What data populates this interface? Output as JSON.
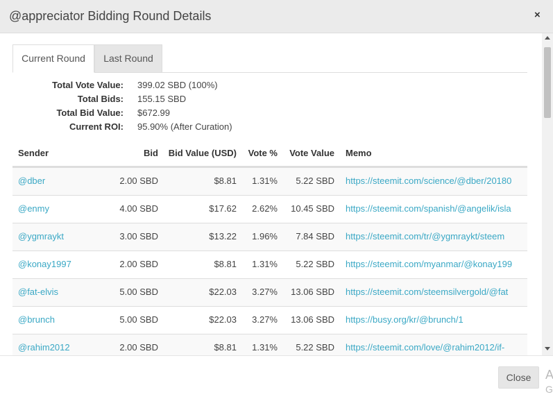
{
  "header": {
    "title": "@appreciator Bidding Round Details",
    "close_glyph": "×"
  },
  "tabs": [
    {
      "label": "Current Round",
      "active": true
    },
    {
      "label": "Last Round",
      "active": false
    }
  ],
  "summary": [
    {
      "label": "Total Vote Value:",
      "value": "399.02 SBD (100%)"
    },
    {
      "label": "Total Bids:",
      "value": "155.15 SBD"
    },
    {
      "label": "Total Bid Value:",
      "value": "$672.99"
    },
    {
      "label": "Current ROI:",
      "value": "95.90% (After Curation)"
    }
  ],
  "table": {
    "columns": [
      "Sender",
      "Bid",
      "Bid Value (USD)",
      "Vote %",
      "Vote Value",
      "Memo"
    ],
    "rows": [
      {
        "sender": "@dber",
        "bid": "2.00 SBD",
        "bid_value": "$8.81",
        "vote_pct": "1.31%",
        "vote_value": "5.22 SBD",
        "memo": "https://steemit.com/science/@dber/20180"
      },
      {
        "sender": "@enmy",
        "bid": "4.00 SBD",
        "bid_value": "$17.62",
        "vote_pct": "2.62%",
        "vote_value": "10.45 SBD",
        "memo": "https://steemit.com/spanish/@angelik/isla"
      },
      {
        "sender": "@ygmraykt",
        "bid": "3.00 SBD",
        "bid_value": "$13.22",
        "vote_pct": "1.96%",
        "vote_value": "7.84 SBD",
        "memo": "https://steemit.com/tr/@ygmraykt/steem"
      },
      {
        "sender": "@konay1997",
        "bid": "2.00 SBD",
        "bid_value": "$8.81",
        "vote_pct": "1.31%",
        "vote_value": "5.22 SBD",
        "memo": "https://steemit.com/myanmar/@konay199"
      },
      {
        "sender": "@fat-elvis",
        "bid": "5.00 SBD",
        "bid_value": "$22.03",
        "vote_pct": "3.27%",
        "vote_value": "13.06 SBD",
        "memo": "https://steemit.com/steemsilvergold/@fat"
      },
      {
        "sender": "@brunch",
        "bid": "5.00 SBD",
        "bid_value": "$22.03",
        "vote_pct": "3.27%",
        "vote_value": "13.06 SBD",
        "memo": "https://busy.org/kr/@brunch/1"
      },
      {
        "sender": "@rahim2012",
        "bid": "2.00 SBD",
        "bid_value": "$8.81",
        "vote_pct": "1.31%",
        "vote_value": "5.22 SBD",
        "memo": "https://steemit.com/love/@rahim2012/if-"
      }
    ]
  },
  "footer": {
    "close_label": "Close",
    "edge_char_1": "A",
    "edge_char_2": "G"
  },
  "colors": {
    "link": "#3aa8c5",
    "header_bg": "#ebebeb",
    "stripe": "#f9f9f9"
  }
}
